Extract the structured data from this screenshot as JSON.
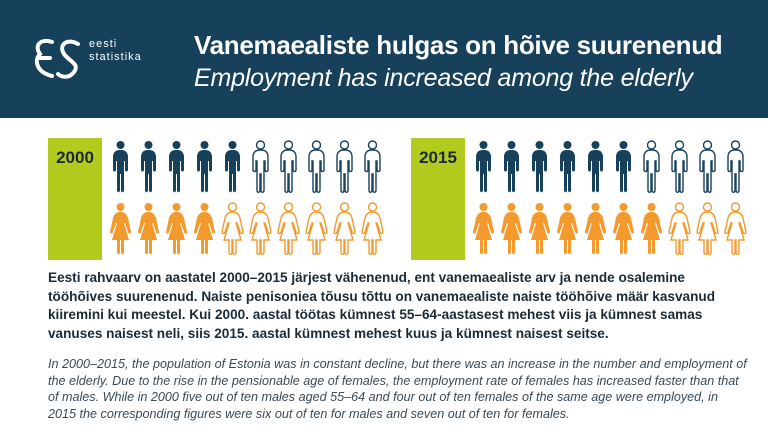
{
  "logo": {
    "line1": "eesti",
    "line2": "statistika"
  },
  "title_et": "Vanemaealiste hulgas on hõive suurenenud",
  "title_en": "Employment has increased among the elderly",
  "colors": {
    "header_bg": "#17405a",
    "year_bar": "#b3ca1f",
    "male_employed": "#17405a",
    "female_employed": "#f39a2e"
  },
  "panels": [
    {
      "year": "2000",
      "males_employed": 5,
      "females_employed": 4,
      "out_of": 10
    },
    {
      "year": "2015",
      "males_employed": 6,
      "females_employed": 7,
      "out_of": 10
    }
  ],
  "text_et": "Eesti rahvaarv on aastatel 2000–2015 järjest vähenenud, ent vanemaealiste arv ja nende osalemine tööhõives suurenenud. Naiste penisoniea tõusu tõttu on vanemaealiste naiste tööhõive määr kasvanud kiiremini kui meestel. Kui 2000. aastal töötas kümnest 55–64-aastasest mehest viis ja kümnest samas vanuses naisest neli, siis 2015. aastal kümnest mehest kuus ja kümnest naisest seitse.",
  "text_en": "In 2000–2015, the population of Estonia was in constant decline, but there was an increase in the number and employment of the elderly. Due to the rise in the pensionable age of females, the employment rate of females has increased faster than that of males. While in 2000 five out of ten males aged 55–64 and four out of ten females of the same age were employed, in 2015 the corresponding figures were six out of ten for males and seven out of ten for females."
}
